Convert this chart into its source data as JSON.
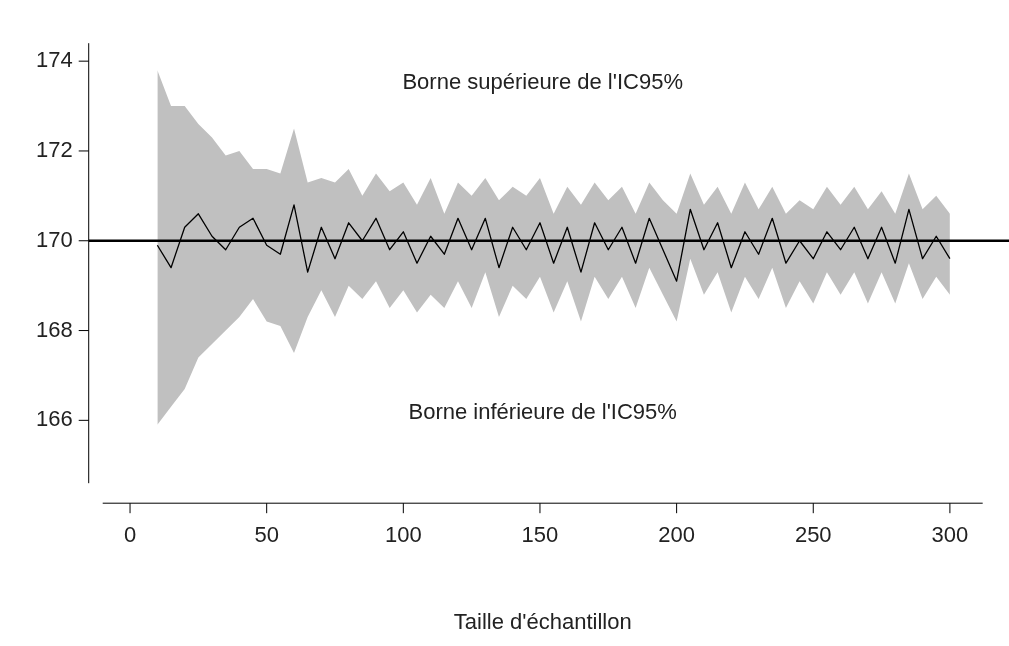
{
  "chart_data": {
    "type": "line",
    "xlabel": "Taille d'échantillon",
    "x": [
      10,
      15,
      20,
      25,
      30,
      35,
      40,
      45,
      50,
      55,
      60,
      65,
      70,
      75,
      80,
      85,
      90,
      95,
      100,
      105,
      110,
      115,
      120,
      125,
      130,
      135,
      140,
      145,
      150,
      155,
      160,
      165,
      170,
      175,
      180,
      185,
      190,
      195,
      200,
      205,
      210,
      215,
      220,
      225,
      230,
      235,
      240,
      245,
      250,
      255,
      260,
      265,
      270,
      275,
      280,
      285,
      290,
      295,
      300
    ],
    "series": [
      {
        "color": "#000000",
        "values": [
          169.9,
          169.4,
          170.3,
          170.6,
          170.1,
          169.8,
          170.3,
          170.5,
          169.9,
          169.7,
          170.8,
          169.3,
          170.3,
          169.6,
          170.4,
          170.0,
          170.5,
          169.8,
          170.2,
          169.5,
          170.1,
          169.7,
          170.5,
          169.8,
          170.5,
          169.4,
          170.3,
          169.8,
          170.4,
          169.5,
          170.3,
          169.3,
          170.4,
          169.8,
          170.3,
          169.5,
          170.5,
          169.8,
          169.1,
          170.7,
          169.8,
          170.4,
          169.4,
          170.2,
          169.7,
          170.5,
          169.5,
          170.0,
          169.6,
          170.2,
          169.8,
          170.3,
          169.6,
          170.3,
          169.5,
          170.7,
          169.6,
          170.1,
          169.6
        ],
        "upper": [
          173.8,
          173.0,
          173.0,
          172.6,
          172.3,
          171.9,
          172.0,
          171.6,
          171.6,
          171.5,
          172.5,
          171.3,
          171.4,
          171.3,
          171.6,
          171.0,
          171.5,
          171.1,
          171.3,
          170.8,
          171.4,
          170.6,
          171.3,
          171.0,
          171.4,
          170.9,
          171.2,
          171.0,
          171.4,
          170.6,
          171.2,
          170.8,
          171.3,
          170.9,
          171.2,
          170.6,
          171.3,
          170.9,
          170.6,
          171.5,
          170.8,
          171.2,
          170.6,
          171.3,
          170.7,
          171.2,
          170.6,
          170.9,
          170.7,
          171.2,
          170.8,
          171.2,
          170.7,
          171.1,
          170.6,
          171.5,
          170.7,
          171.0,
          170.6
        ],
        "lower": [
          165.9,
          166.3,
          166.7,
          167.4,
          167.7,
          168.0,
          168.3,
          168.7,
          168.2,
          168.1,
          167.5,
          168.3,
          168.9,
          168.3,
          169.0,
          168.7,
          169.1,
          168.5,
          168.9,
          168.4,
          168.8,
          168.5,
          169.1,
          168.5,
          169.3,
          168.3,
          169.0,
          168.7,
          169.2,
          168.4,
          169.1,
          168.2,
          169.2,
          168.7,
          169.2,
          168.5,
          169.4,
          168.8,
          168.2,
          169.6,
          168.8,
          169.3,
          168.4,
          169.2,
          168.7,
          169.4,
          168.5,
          169.1,
          168.6,
          169.3,
          168.8,
          169.3,
          168.6,
          169.3,
          168.6,
          169.5,
          168.7,
          169.2,
          168.8
        ]
      }
    ],
    "xlim": [
      -10,
      312
    ],
    "xticks": [
      0,
      50,
      100,
      150,
      200,
      250,
      300
    ],
    "ylim": [
      164.6,
      174.4
    ],
    "yticks": [
      166,
      168,
      170,
      172,
      174
    ],
    "ref_lines": [
      {
        "axis": "y",
        "value": 170,
        "color": "#000000"
      }
    ],
    "annotations": [
      "Borne supérieure de l'IC95%",
      "Borne inférieure de l'IC95%"
    ],
    "grid": false,
    "legend": false,
    "marker": "none",
    "line_style": "solid"
  }
}
